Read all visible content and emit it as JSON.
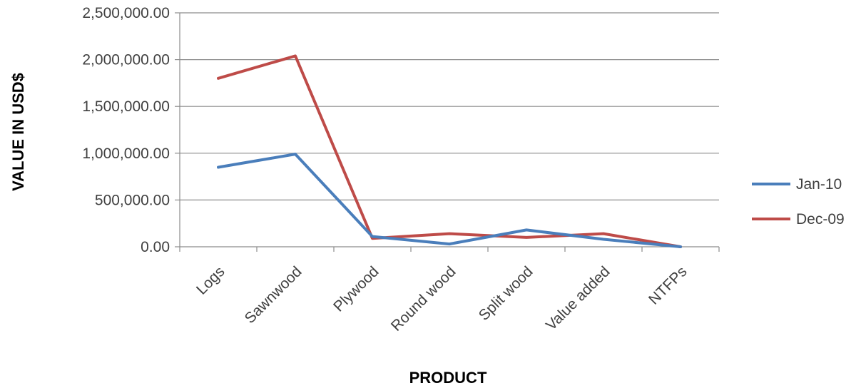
{
  "chart_data": {
    "type": "line",
    "title": "",
    "xlabel": "PRODUCT",
    "ylabel": "VALUE IN USD$",
    "categories": [
      "Logs",
      "Sawnwood",
      "Plywood",
      "Round wood",
      "Split wood",
      "Value added",
      "NTFPs"
    ],
    "ylim": [
      0,
      2500000
    ],
    "y_ticks": [
      0,
      500000,
      1000000,
      1500000,
      2000000,
      2500000
    ],
    "y_tick_labels": [
      "0.00",
      "500,000.00",
      "1,000,000.00",
      "1,500,000.00",
      "2,000,000.00",
      "2,500,000.00"
    ],
    "grid": true,
    "legend_position": "right",
    "series": [
      {
        "name": "Jan-10",
        "color": "#4a7ebb",
        "values": [
          850000,
          990000,
          110000,
          30000,
          180000,
          80000,
          0
        ]
      },
      {
        "name": "Dec-09",
        "color": "#be4b48",
        "values": [
          1800000,
          2040000,
          90000,
          140000,
          100000,
          140000,
          0
        ]
      }
    ]
  }
}
